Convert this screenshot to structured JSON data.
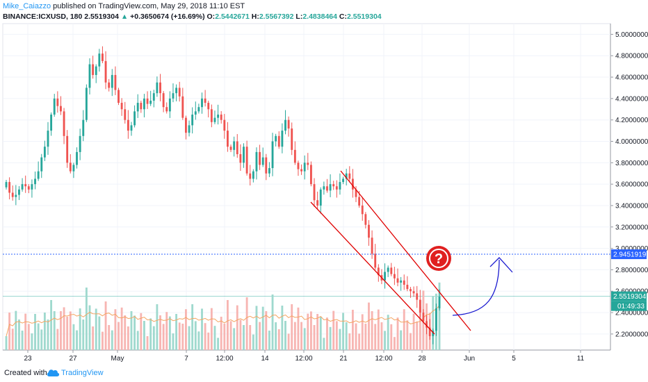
{
  "header": {
    "author": "Mike_Caiazzo",
    "published": " published on TradingView.com, May 29, 2018 11:10 EST",
    "symbol": "BINANCE:ICXUSD, 180",
    "last": "2.5519304",
    "arrow": "▲",
    "change": "+0.3650674 (+16.69%)",
    "o_label": "O:",
    "o_value": "2.5442671",
    "h_label": "H:",
    "h_value": "2.5567392",
    "l_label": "L:",
    "l_value": "2.4838464",
    "c_label": "C:",
    "c_value": "2.5519304"
  },
  "footer": {
    "created_with": "Created with",
    "brand": "TradingView"
  },
  "colors": {
    "up": "#26a69a",
    "down": "#ef5350",
    "channel": "#e00000",
    "ref_line": "#2962ff",
    "arrow": "#1a1ad0",
    "volume_up": "#9fd9ce",
    "volume_down": "#f7b5b2",
    "ma": "#f4a460"
  },
  "annotations": {
    "question": "?"
  },
  "chart_data": {
    "type": "candlestick",
    "ylim": [
      2.05,
      5.1
    ],
    "y_ticks": [
      "5.0000000",
      "4.8000000",
      "4.6000000",
      "4.4000000",
      "4.2000000",
      "4.0000000",
      "3.8000000",
      "3.6000000",
      "3.4000000",
      "3.2000000",
      "3.0000000",
      "2.8000000",
      "2.6000000",
      "2.4000000",
      "2.2000000"
    ],
    "x_ticks": [
      "23",
      "27",
      "May",
      "7",
      "12:00",
      "14",
      "12:00",
      "21",
      "12:00",
      "28",
      "Jun",
      "5",
      "11"
    ],
    "price_tags": [
      {
        "value": 2.9451919,
        "label": "2.9451919",
        "color": "#2962ff"
      },
      {
        "value": 2.5519304,
        "label": "2.5519304",
        "color": "#26a69a"
      }
    ],
    "countdown": "01:49:33",
    "horizontal_line": 2.9451919,
    "closes": [
      3.62,
      3.52,
      3.48,
      3.5,
      3.55,
      3.6,
      3.58,
      3.55,
      3.6,
      3.65,
      3.72,
      3.85,
      3.95,
      4.1,
      4.25,
      4.4,
      4.33,
      4.28,
      4.05,
      3.8,
      3.72,
      3.78,
      3.9,
      4.05,
      4.2,
      4.5,
      4.72,
      4.62,
      4.7,
      4.82,
      4.75,
      4.55,
      4.5,
      4.62,
      4.48,
      4.36,
      4.3,
      4.2,
      4.1,
      4.15,
      4.28,
      4.36,
      4.3,
      4.4,
      4.35,
      4.38,
      4.45,
      4.55,
      4.45,
      4.32,
      4.28,
      4.4,
      4.45,
      4.5,
      4.42,
      4.22,
      4.08,
      4.15,
      4.25,
      4.28,
      4.32,
      4.4,
      4.36,
      4.3,
      4.18,
      4.22,
      4.25,
      4.2,
      4.1,
      3.95,
      3.92,
      4.0,
      3.88,
      3.8,
      3.95,
      3.7,
      3.65,
      3.72,
      3.9,
      3.78,
      3.85,
      3.7,
      3.75,
      4.0,
      4.05,
      3.95,
      4.1,
      4.2,
      4.12,
      3.92,
      3.8,
      3.74,
      3.72,
      3.8,
      3.78,
      3.6,
      3.45,
      3.4,
      3.55,
      3.58,
      3.54,
      3.6,
      3.58,
      3.55,
      3.62,
      3.65,
      3.7,
      3.65,
      3.55,
      3.48,
      3.4,
      3.32,
      3.22,
      3.1,
      2.95,
      2.82,
      2.75,
      2.7,
      2.78,
      2.82,
      2.76,
      2.72,
      2.68,
      2.7,
      2.66,
      2.62,
      2.6,
      2.58,
      2.52,
      2.4,
      2.32,
      2.26,
      2.18,
      2.23,
      2.44,
      2.55
    ]
  }
}
